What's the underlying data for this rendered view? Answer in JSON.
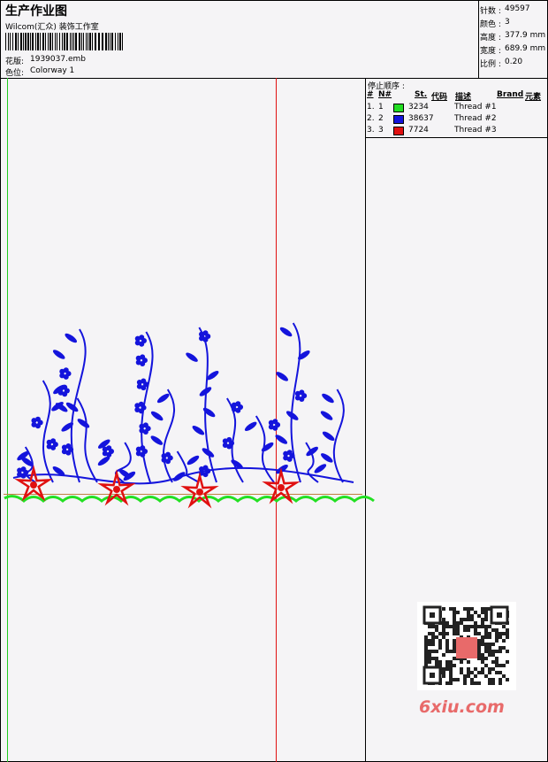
{
  "header": {
    "title": "生产作业图",
    "company": "Wilcom(汇众) 装饰工作室",
    "design_label": "花版:",
    "design_value": "1939037.emb",
    "colorway_label": "色位:",
    "colorway_value": "Colorway 1"
  },
  "info": {
    "rows": [
      {
        "label": "针数 :",
        "value": "49597"
      },
      {
        "label": "颜色 :",
        "value": "3"
      },
      {
        "label": "高度 :",
        "value": "377.9 mm"
      },
      {
        "label": "宽度 :",
        "value": "689.9 mm"
      },
      {
        "label": "比例 :",
        "value": "0.20"
      }
    ]
  },
  "table": {
    "title": "停止顺序 :",
    "columns": [
      "#",
      "N#",
      "St.",
      "代码",
      "描述",
      "Brand",
      "元素"
    ],
    "rows": [
      {
        "index": "1.",
        "number": "1",
        "color": "#22dd22",
        "code": "3234",
        "desc": "Thread #1"
      },
      {
        "index": "2.",
        "number": "2",
        "color": "#1414dc",
        "code": "38637",
        "desc": "Thread #2"
      },
      {
        "index": "3.",
        "number": "3",
        "color": "#e01010",
        "code": "7724",
        "desc": "Thread #3"
      }
    ]
  },
  "watermark": "6xiu.com"
}
